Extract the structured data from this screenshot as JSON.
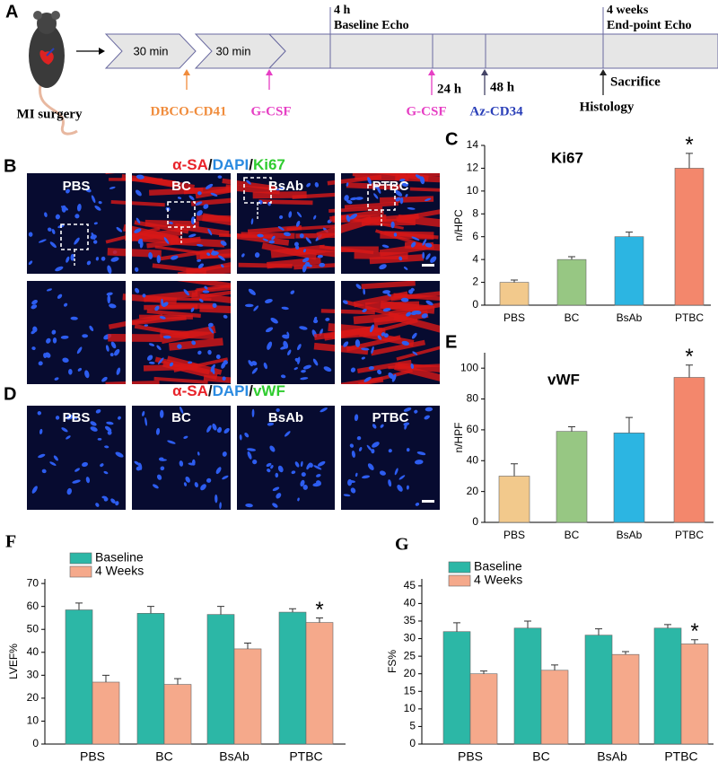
{
  "panel_labels": [
    "A",
    "B",
    "C",
    "D",
    "E",
    "F",
    "G"
  ],
  "timeline": {
    "start": "MI surgery",
    "steps": [
      "30 min",
      "30 min"
    ],
    "milestones": [
      [
        "4 h",
        "Baseline Echo"
      ],
      [
        "4 weeks",
        "End-point Echo"
      ]
    ],
    "injections": [
      {
        "text": "DBCO-CD41",
        "color": "#f08c3c"
      },
      {
        "text": "G-CSF",
        "color": "#e63fc4"
      },
      {
        "text": "G-CSF",
        "color": "#e63fc4"
      },
      {
        "text": "Az-CD34",
        "color": "#2a3fb8"
      }
    ],
    "times": [
      "24 h",
      "48 h"
    ],
    "endpoints": [
      "Sacrifice",
      "Histology"
    ]
  },
  "micrographs": [
    {
      "stain": [
        {
          "text": "α-SA",
          "color": "#e8232a"
        },
        {
          "text": "/",
          "color": "#111111"
        },
        {
          "text": "DAPI",
          "color": "#2a8ae0"
        },
        {
          "text": "/",
          "color": "#111111"
        },
        {
          "text": "Ki67",
          "color": "#2fcc2f"
        }
      ],
      "groups": [
        "PBS",
        "BC",
        "BsAb",
        "PTBC"
      ]
    },
    {
      "stain": [
        {
          "text": "α-SA",
          "color": "#e8232a"
        },
        {
          "text": "/",
          "color": "#111111"
        },
        {
          "text": "DAPI",
          "color": "#2a8ae0"
        },
        {
          "text": "/",
          "color": "#111111"
        },
        {
          "text": "vWF",
          "color": "#2fcc2f"
        }
      ],
      "groups": [
        "PBS",
        "BC",
        "BsAb",
        "PTBC"
      ]
    }
  ],
  "chart_data": [
    {
      "type": "bar",
      "title": "Ki67",
      "ylabel": "n/HPC",
      "categories": [
        "PBS",
        "BC",
        "BsAb",
        "PTBC"
      ],
      "values": [
        2,
        4,
        6,
        12
      ],
      "errors": [
        0.2,
        0.25,
        0.4,
        1.3
      ],
      "colors": [
        "#f2c98c",
        "#97c783",
        "#2cb5e2",
        "#f3876c"
      ],
      "ylim": [
        0,
        14
      ],
      "yticks": [
        0,
        2,
        4,
        6,
        8,
        10,
        12,
        14
      ],
      "annotations": [
        {
          "text": "*",
          "category": "PTBC"
        }
      ]
    },
    {
      "type": "bar",
      "title": "vWF",
      "ylabel": "n/HPF",
      "categories": [
        "PBS",
        "BC",
        "BsAb",
        "PTBC"
      ],
      "values": [
        30,
        59,
        58,
        94
      ],
      "errors": [
        8,
        3,
        10,
        8
      ],
      "colors": [
        "#f2c98c",
        "#97c783",
        "#2cb5e2",
        "#f3876c"
      ],
      "ylim": [
        0,
        110
      ],
      "yticks": [
        0,
        20,
        40,
        60,
        80,
        100
      ],
      "annotations": [
        {
          "text": "*",
          "category": "PTBC"
        }
      ]
    },
    {
      "type": "grouped_bar",
      "ylabel": "LVEF%",
      "categories": [
        "PBS",
        "BC",
        "BsAb",
        "PTBC"
      ],
      "series": [
        {
          "name": "Baseline",
          "color": "#2cb7a6",
          "values": [
            58.5,
            57,
            56.5,
            57.5
          ],
          "errors": [
            3,
            3,
            3.5,
            1.5
          ]
        },
        {
          "name": "4 Weeks",
          "color": "#f5a98b",
          "values": [
            27,
            26,
            41.5,
            53
          ],
          "errors": [
            3,
            2.5,
            2.5,
            2
          ]
        }
      ],
      "ylim": [
        0,
        72
      ],
      "yticks": [
        0,
        10,
        20,
        30,
        40,
        50,
        60,
        70
      ],
      "annotations": [
        {
          "text": "*",
          "category": "PTBC",
          "series": "4 Weeks"
        }
      ]
    },
    {
      "type": "grouped_bar",
      "ylabel": "FS%",
      "categories": [
        "PBS",
        "BC",
        "BsAb",
        "PTBC"
      ],
      "series": [
        {
          "name": "Baseline",
          "color": "#2cb7a6",
          "values": [
            32,
            33,
            31,
            33
          ],
          "errors": [
            2.5,
            2,
            1.8,
            1
          ]
        },
        {
          "name": "4 Weeks",
          "color": "#f5a98b",
          "values": [
            20,
            21,
            25.5,
            28.5
          ],
          "errors": [
            0.8,
            1.5,
            0.8,
            1.2
          ]
        }
      ],
      "ylim": [
        0,
        47
      ],
      "yticks": [
        0,
        5,
        10,
        15,
        20,
        25,
        30,
        35,
        40,
        45
      ],
      "annotations": [
        {
          "text": "*",
          "category": "PTBC",
          "series": "4 Weeks"
        }
      ]
    }
  ]
}
